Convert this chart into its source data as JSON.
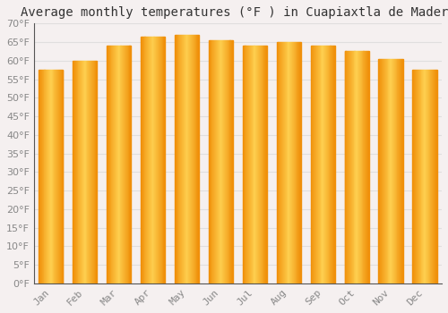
{
  "title": "Average monthly temperatures (°F ) in Cuapiaxtla de Madero",
  "months": [
    "Jan",
    "Feb",
    "Mar",
    "Apr",
    "May",
    "Jun",
    "Jul",
    "Aug",
    "Sep",
    "Oct",
    "Nov",
    "Dec"
  ],
  "values": [
    57.5,
    60.0,
    64.0,
    66.5,
    67.0,
    65.5,
    64.0,
    65.0,
    64.0,
    62.5,
    60.5,
    57.5
  ],
  "bar_color_center": "#FFD050",
  "bar_color_edge": "#F0900A",
  "ylim": [
    0,
    70
  ],
  "yticks": [
    0,
    5,
    10,
    15,
    20,
    25,
    30,
    35,
    40,
    45,
    50,
    55,
    60,
    65,
    70
  ],
  "background_color": "#f5f0f0",
  "grid_color": "#e0dede",
  "title_fontsize": 10,
  "tick_fontsize": 8,
  "axis_color": "#888888"
}
